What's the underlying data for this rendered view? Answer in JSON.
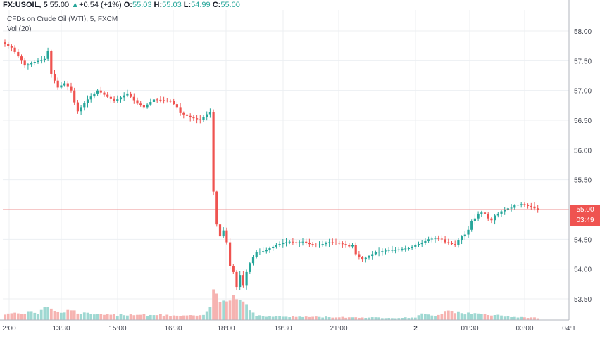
{
  "header": {
    "symbol": "FX:USOIL, 5",
    "last": "55.00",
    "change": "+0.54 (+1%)",
    "o_label": "O:",
    "o_value": "55.03",
    "h_label": "H:",
    "h_value": "55.03",
    "l_label": "L:",
    "l_value": "54.99",
    "c_label": "C:",
    "c_value": "55.00",
    "indicator1": "CFDs on Crude Oil (WTI), 5, FXCM",
    "indicator2": "Vol (20)"
  },
  "price_tag": {
    "price": "55.00",
    "countdown": "03:49"
  },
  "colors": {
    "up": "#26a69a",
    "down": "#ef5350",
    "vol_up": "#9fd8d2",
    "vol_down": "#f6b3b1",
    "grid": "#eceff2",
    "price_line": "#ef5350"
  },
  "chart_data": {
    "type": "candlestick",
    "ylim": [
      53.2,
      58.2
    ],
    "y_ticks": [
      "58.00",
      "57.50",
      "57.00",
      "56.50",
      "56.00",
      "55.50",
      "55.00",
      "54.50",
      "54.00",
      "53.50"
    ],
    "x_ticks": [
      "2:00",
      "13:30",
      "15:00",
      "16:30",
      "18:00",
      "19:30",
      "21:00",
      "2",
      "01:30",
      "03:00",
      "04:1"
    ],
    "current_price": 55.0,
    "close_path": [
      [
        0,
        57.78
      ],
      [
        2,
        57.72
      ],
      [
        5,
        57.5
      ],
      [
        6,
        57.42
      ],
      [
        9,
        57.48
      ],
      [
        12,
        57.53
      ],
      [
        13,
        57.66
      ],
      [
        14,
        57.28
      ],
      [
        16,
        57.05
      ],
      [
        18,
        57.12
      ],
      [
        20,
        57.0
      ],
      [
        21,
        56.8
      ],
      [
        22,
        56.65
      ],
      [
        23,
        56.72
      ],
      [
        25,
        56.85
      ],
      [
        28,
        57.0
      ],
      [
        30,
        56.93
      ],
      [
        33,
        56.82
      ],
      [
        37,
        56.95
      ],
      [
        40,
        56.78
      ],
      [
        42,
        56.72
      ],
      [
        45,
        56.85
      ],
      [
        50,
        56.82
      ],
      [
        52,
        56.72
      ],
      [
        53,
        56.62
      ],
      [
        56,
        56.55
      ],
      [
        59,
        56.5
      ],
      [
        61,
        56.6
      ],
      [
        62,
        56.64
      ],
      [
        63,
        55.3
      ],
      [
        64,
        54.75
      ],
      [
        65,
        54.55
      ],
      [
        66,
        54.65
      ],
      [
        67,
        54.45
      ],
      [
        68,
        54.05
      ],
      [
        69,
        53.95
      ],
      [
        70,
        53.7
      ],
      [
        71,
        53.9
      ],
      [
        72,
        53.72
      ],
      [
        73,
        53.95
      ],
      [
        74,
        54.1
      ],
      [
        75,
        54.2
      ],
      [
        76,
        54.28
      ],
      [
        78,
        54.3
      ],
      [
        80,
        54.35
      ],
      [
        82,
        54.4
      ],
      [
        84,
        54.44
      ],
      [
        86,
        54.46
      ],
      [
        88,
        54.44
      ],
      [
        90,
        54.46
      ],
      [
        92,
        54.42
      ],
      [
        94,
        54.4
      ],
      [
        96,
        54.42
      ],
      [
        98,
        54.45
      ],
      [
        100,
        54.44
      ],
      [
        102,
        54.42
      ],
      [
        104,
        54.38
      ],
      [
        105,
        54.4
      ],
      [
        106,
        54.25
      ],
      [
        107,
        54.2
      ],
      [
        108,
        54.16
      ],
      [
        110,
        54.22
      ],
      [
        112,
        54.28
      ],
      [
        114,
        54.3
      ],
      [
        116,
        54.32
      ],
      [
        118,
        54.32
      ],
      [
        120,
        54.34
      ],
      [
        122,
        54.35
      ],
      [
        124,
        54.4
      ],
      [
        126,
        54.44
      ],
      [
        128,
        54.5
      ],
      [
        130,
        54.52
      ],
      [
        132,
        54.5
      ],
      [
        133,
        54.45
      ],
      [
        135,
        54.42
      ],
      [
        136,
        54.4
      ],
      [
        137,
        54.48
      ],
      [
        138,
        54.55
      ],
      [
        139,
        54.58
      ],
      [
        140,
        54.66
      ],
      [
        141,
        54.8
      ],
      [
        142,
        54.85
      ],
      [
        143,
        54.93
      ],
      [
        144,
        54.95
      ],
      [
        145,
        54.93
      ],
      [
        146,
        54.85
      ],
      [
        147,
        54.82
      ],
      [
        148,
        54.9
      ],
      [
        149,
        54.93
      ],
      [
        150,
        54.97
      ],
      [
        151,
        55.0
      ],
      [
        152,
        55.02
      ],
      [
        153,
        55.03
      ],
      [
        154,
        55.07
      ],
      [
        155,
        55.08
      ],
      [
        156,
        55.09
      ],
      [
        157,
        55.08
      ],
      [
        158,
        55.06
      ],
      [
        159,
        55.05
      ],
      [
        160,
        55.02
      ],
      [
        161,
        55.0
      ]
    ],
    "volume_profile": [
      [
        0,
        9
      ],
      [
        10,
        10
      ],
      [
        12,
        22
      ],
      [
        14,
        18
      ],
      [
        16,
        10
      ],
      [
        18,
        13
      ],
      [
        20,
        14
      ],
      [
        22,
        10
      ],
      [
        28,
        8
      ],
      [
        30,
        7
      ],
      [
        40,
        8
      ],
      [
        52,
        6
      ],
      [
        60,
        6
      ],
      [
        62,
        18
      ],
      [
        63,
        40
      ],
      [
        64,
        38
      ],
      [
        65,
        30
      ],
      [
        68,
        34
      ],
      [
        70,
        32
      ],
      [
        72,
        28
      ],
      [
        74,
        14
      ],
      [
        76,
        7
      ],
      [
        80,
        5
      ],
      [
        100,
        4
      ],
      [
        120,
        3
      ],
      [
        124,
        4
      ],
      [
        126,
        8
      ],
      [
        130,
        6
      ],
      [
        134,
        14
      ],
      [
        136,
        12
      ],
      [
        138,
        10
      ],
      [
        140,
        9
      ],
      [
        144,
        8
      ],
      [
        150,
        6
      ],
      [
        156,
        4
      ],
      [
        161,
        3
      ]
    ]
  }
}
